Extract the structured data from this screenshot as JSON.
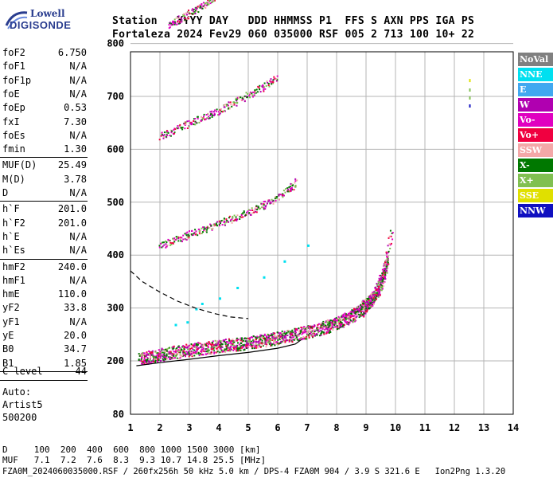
{
  "logo": {
    "top": "Lowell",
    "bottom": "DIGISONDE"
  },
  "header": {
    "line1": "Station   YYYY DAY   DDD HHMMSS P1  FFS S AXN PPS IGA PS",
    "line2": "Fortaleza 2024 Fev29 060 035000 RSF 005 2 713 100 10+ 22"
  },
  "params": [
    {
      "k": "foF2",
      "v": "6.750"
    },
    {
      "k": "foF1",
      "v": "N/A"
    },
    {
      "k": "foF1p",
      "v": "N/A"
    },
    {
      "k": "foE",
      "v": "N/A"
    },
    {
      "k": "foEp",
      "v": "0.53"
    },
    {
      "k": "fxI",
      "v": "7.30"
    },
    {
      "k": "foEs",
      "v": "N/A"
    },
    {
      "k": "fmin",
      "v": "1.30"
    },
    {
      "k": "MUF(D)",
      "v": "25.49"
    },
    {
      "k": "M(D)",
      "v": "3.78"
    },
    {
      "k": "D",
      "v": "N/A"
    },
    {
      "k": "h`F",
      "v": "201.0"
    },
    {
      "k": "h`F2",
      "v": "201.0"
    },
    {
      "k": "h`E",
      "v": "N/A"
    },
    {
      "k": "h`Es",
      "v": "N/A"
    },
    {
      "k": "hmF2",
      "v": "240.0"
    },
    {
      "k": "hmF1",
      "v": "N/A"
    },
    {
      "k": "hmE",
      "v": "110.0"
    },
    {
      "k": "yF2",
      "v": "33.8"
    },
    {
      "k": "yF1",
      "v": "N/A"
    },
    {
      "k": "yE",
      "v": "20.0"
    },
    {
      "k": "B0",
      "v": "34.7"
    },
    {
      "k": "B1",
      "v": "1.85"
    }
  ],
  "clevel": {
    "k": "C-level",
    "v": "44"
  },
  "auto": {
    "line1": "Auto:",
    "line2": "Artist5",
    "line3": "500200"
  },
  "legend": [
    {
      "label": "NoVal",
      "color": "#808080"
    },
    {
      "label": "NNE",
      "color": "#00e0f0"
    },
    {
      "label": "E",
      "color": "#40a8f0"
    },
    {
      "label": "W",
      "color": "#b000b0"
    },
    {
      "label": "Vo-",
      "color": "#e000c0"
    },
    {
      "label": "Vo+",
      "color": "#f00040"
    },
    {
      "label": "SSW",
      "color": "#f4a8a8"
    },
    {
      "label": "X-",
      "color": "#007800"
    },
    {
      "label": "X+",
      "color": "#80c050"
    },
    {
      "label": "SSE",
      "color": "#e0e000"
    },
    {
      "label": "NNW",
      "color": "#1010c0"
    }
  ],
  "bottom": {
    "d_line": "D     100  200  400  600  800 1000 1500 3000 [km]",
    "muf_line": "MUF   7.1  7.2  7.6  8.3  9.3 10.7 14.8 25.5 [MHz]",
    "footer": "FZA0M_2024060035000.RSF / 260fx256h 50 kHz 5.0 km / DPS-4 FZA0M 904 / 3.9 S 321.6 E   Ion2Png 1.3.20"
  },
  "chart_data": {
    "type": "scatter",
    "title": "",
    "xlabel": "",
    "ylabel": "",
    "xlim": [
      1,
      14
    ],
    "ylim": [
      80,
      900
    ],
    "x_ticks": [
      1,
      2,
      3,
      4,
      5,
      6,
      7,
      8,
      9,
      10,
      11,
      12,
      13,
      14
    ],
    "y_ticks": [
      80,
      200,
      300,
      400,
      500,
      600,
      700,
      800,
      900
    ],
    "grid": true,
    "traces": [
      {
        "name": "1st hop F2",
        "x": [
          1.3,
          1.6,
          2.0,
          2.4,
          2.8,
          3.2,
          3.6,
          4.0,
          4.4,
          4.8,
          5.2,
          5.6,
          6.0,
          6.4,
          6.8,
          7.2,
          7.6,
          8.0,
          8.4,
          8.8,
          9.0,
          9.2,
          9.4,
          9.6,
          9.7
        ],
        "y": [
          205,
          208,
          212,
          216,
          220,
          223,
          226,
          229,
          231,
          234,
          237,
          240,
          244,
          248,
          253,
          258,
          264,
          272,
          282,
          295,
          305,
          318,
          335,
          362,
          400
        ]
      },
      {
        "name": "2nd hop F2",
        "x": [
          2.0,
          2.4,
          2.8,
          3.2,
          3.6,
          4.0,
          4.4,
          4.8,
          5.2,
          5.6,
          6.0,
          6.4,
          6.6
        ],
        "y": [
          418,
          428,
          436,
          445,
          452,
          460,
          468,
          477,
          487,
          498,
          510,
          527,
          540
        ]
      },
      {
        "name": "3rd hop F2",
        "x": [
          2.0,
          2.4,
          2.8,
          3.2,
          3.6,
          4.0,
          4.4,
          4.8,
          5.2,
          5.6,
          6.0
        ],
        "y": [
          625,
          635,
          645,
          655,
          665,
          675,
          686,
          697,
          710,
          722,
          740
        ]
      },
      {
        "name": "4th hop F2",
        "x": [
          2.3,
          2.6,
          2.9,
          3.2,
          3.5,
          3.8,
          4.1
        ],
        "y": [
          835,
          845,
          855,
          865,
          875,
          887,
          898
        ]
      },
      {
        "name": "X-trace",
        "x": [
          7.5,
          7.9,
          8.3,
          8.7,
          9.0,
          9.3,
          9.6,
          9.9
        ],
        "y": [
          270,
          275,
          285,
          298,
          312,
          335,
          372,
          460
        ]
      }
    ],
    "profile_solid": {
      "x": [
        1.2,
        2.0,
        3.0,
        4.0,
        5.0,
        6.0,
        6.6,
        6.8
      ],
      "y": [
        189,
        196,
        203,
        210,
        216,
        224,
        232,
        240
      ]
    },
    "profile_dashed": {
      "x": [
        1.0,
        1.4,
        2.0,
        2.6,
        3.2,
        3.8,
        4.4,
        5.0
      ],
      "y": [
        370,
        350,
        330,
        313,
        300,
        290,
        283,
        280
      ]
    },
    "side_marks": [
      {
        "x": 12.5,
        "y": 733,
        "color": "#e0e000"
      },
      {
        "x": 12.5,
        "y": 715,
        "color": "#80c050"
      },
      {
        "x": 12.5,
        "y": 700,
        "color": "#80c050"
      },
      {
        "x": 12.5,
        "y": 685,
        "color": "#1010c0"
      }
    ]
  }
}
